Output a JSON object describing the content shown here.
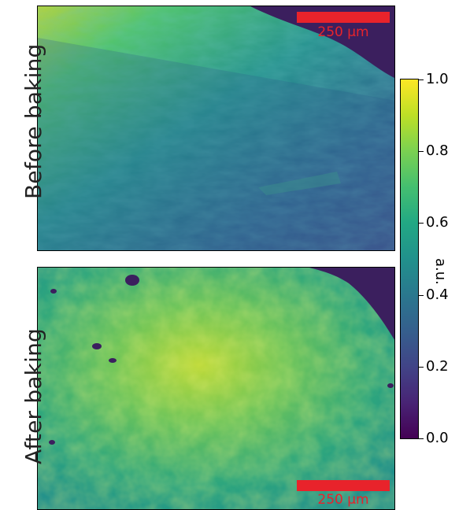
{
  "panels": [
    {
      "label": "Before baking",
      "scalebar_text": "250 µm"
    },
    {
      "label": "After baking",
      "scalebar_text": "250 µm"
    }
  ],
  "colorbar": {
    "title": "a.u.",
    "ticks": [
      "0.0",
      "0.2",
      "0.4",
      "0.6",
      "0.8",
      "1.0"
    ],
    "colormap": "viridis",
    "range": [
      0.0,
      1.0
    ]
  },
  "colors": {
    "scalebar": "#e8232b",
    "background_dark": "#3b1f5e"
  }
}
